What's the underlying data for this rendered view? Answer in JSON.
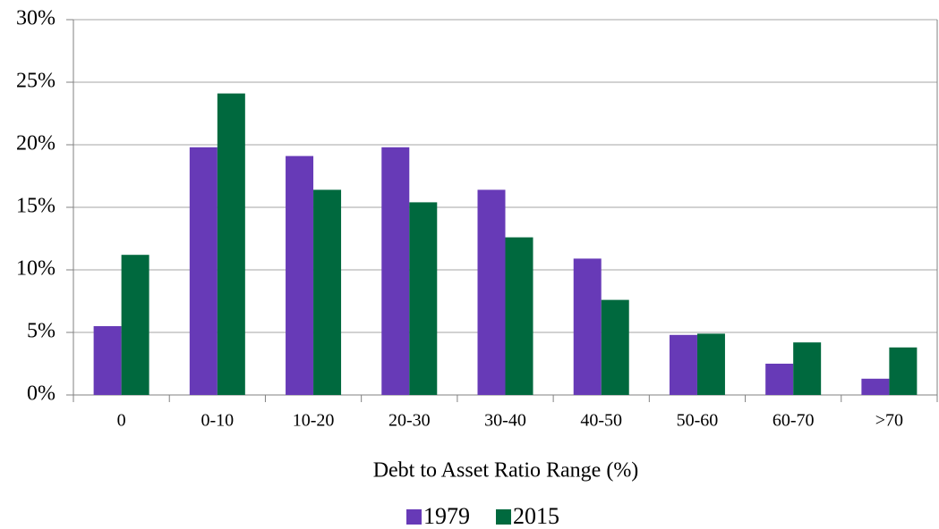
{
  "chart_data": {
    "type": "bar",
    "xlabel": "Debt to Asset Ratio Range (%)",
    "categories": [
      "0",
      "0-10",
      "10-20",
      "20-30",
      "30-40",
      "40-50",
      "50-60",
      "60-70",
      ">70"
    ],
    "series": [
      {
        "name": "1979",
        "color": "#673ab7",
        "values": [
          5.5,
          19.8,
          19.1,
          19.8,
          16.4,
          10.9,
          4.8,
          2.5,
          1.3
        ]
      },
      {
        "name": "2015",
        "color": "#00693e",
        "values": [
          11.2,
          24.1,
          16.4,
          15.4,
          12.6,
          7.6,
          4.9,
          4.2,
          3.8
        ]
      }
    ],
    "ylim": [
      0,
      30
    ],
    "yticks": [
      {
        "value": 0,
        "label": "0%"
      },
      {
        "value": 5,
        "label": "5%"
      },
      {
        "value": 10,
        "label": "10%"
      },
      {
        "value": 15,
        "label": "15%"
      },
      {
        "value": 20,
        "label": "20%"
      },
      {
        "value": 25,
        "label": "25%"
      },
      {
        "value": 30,
        "label": "30%"
      }
    ],
    "grid": true,
    "legend": "bottom"
  }
}
